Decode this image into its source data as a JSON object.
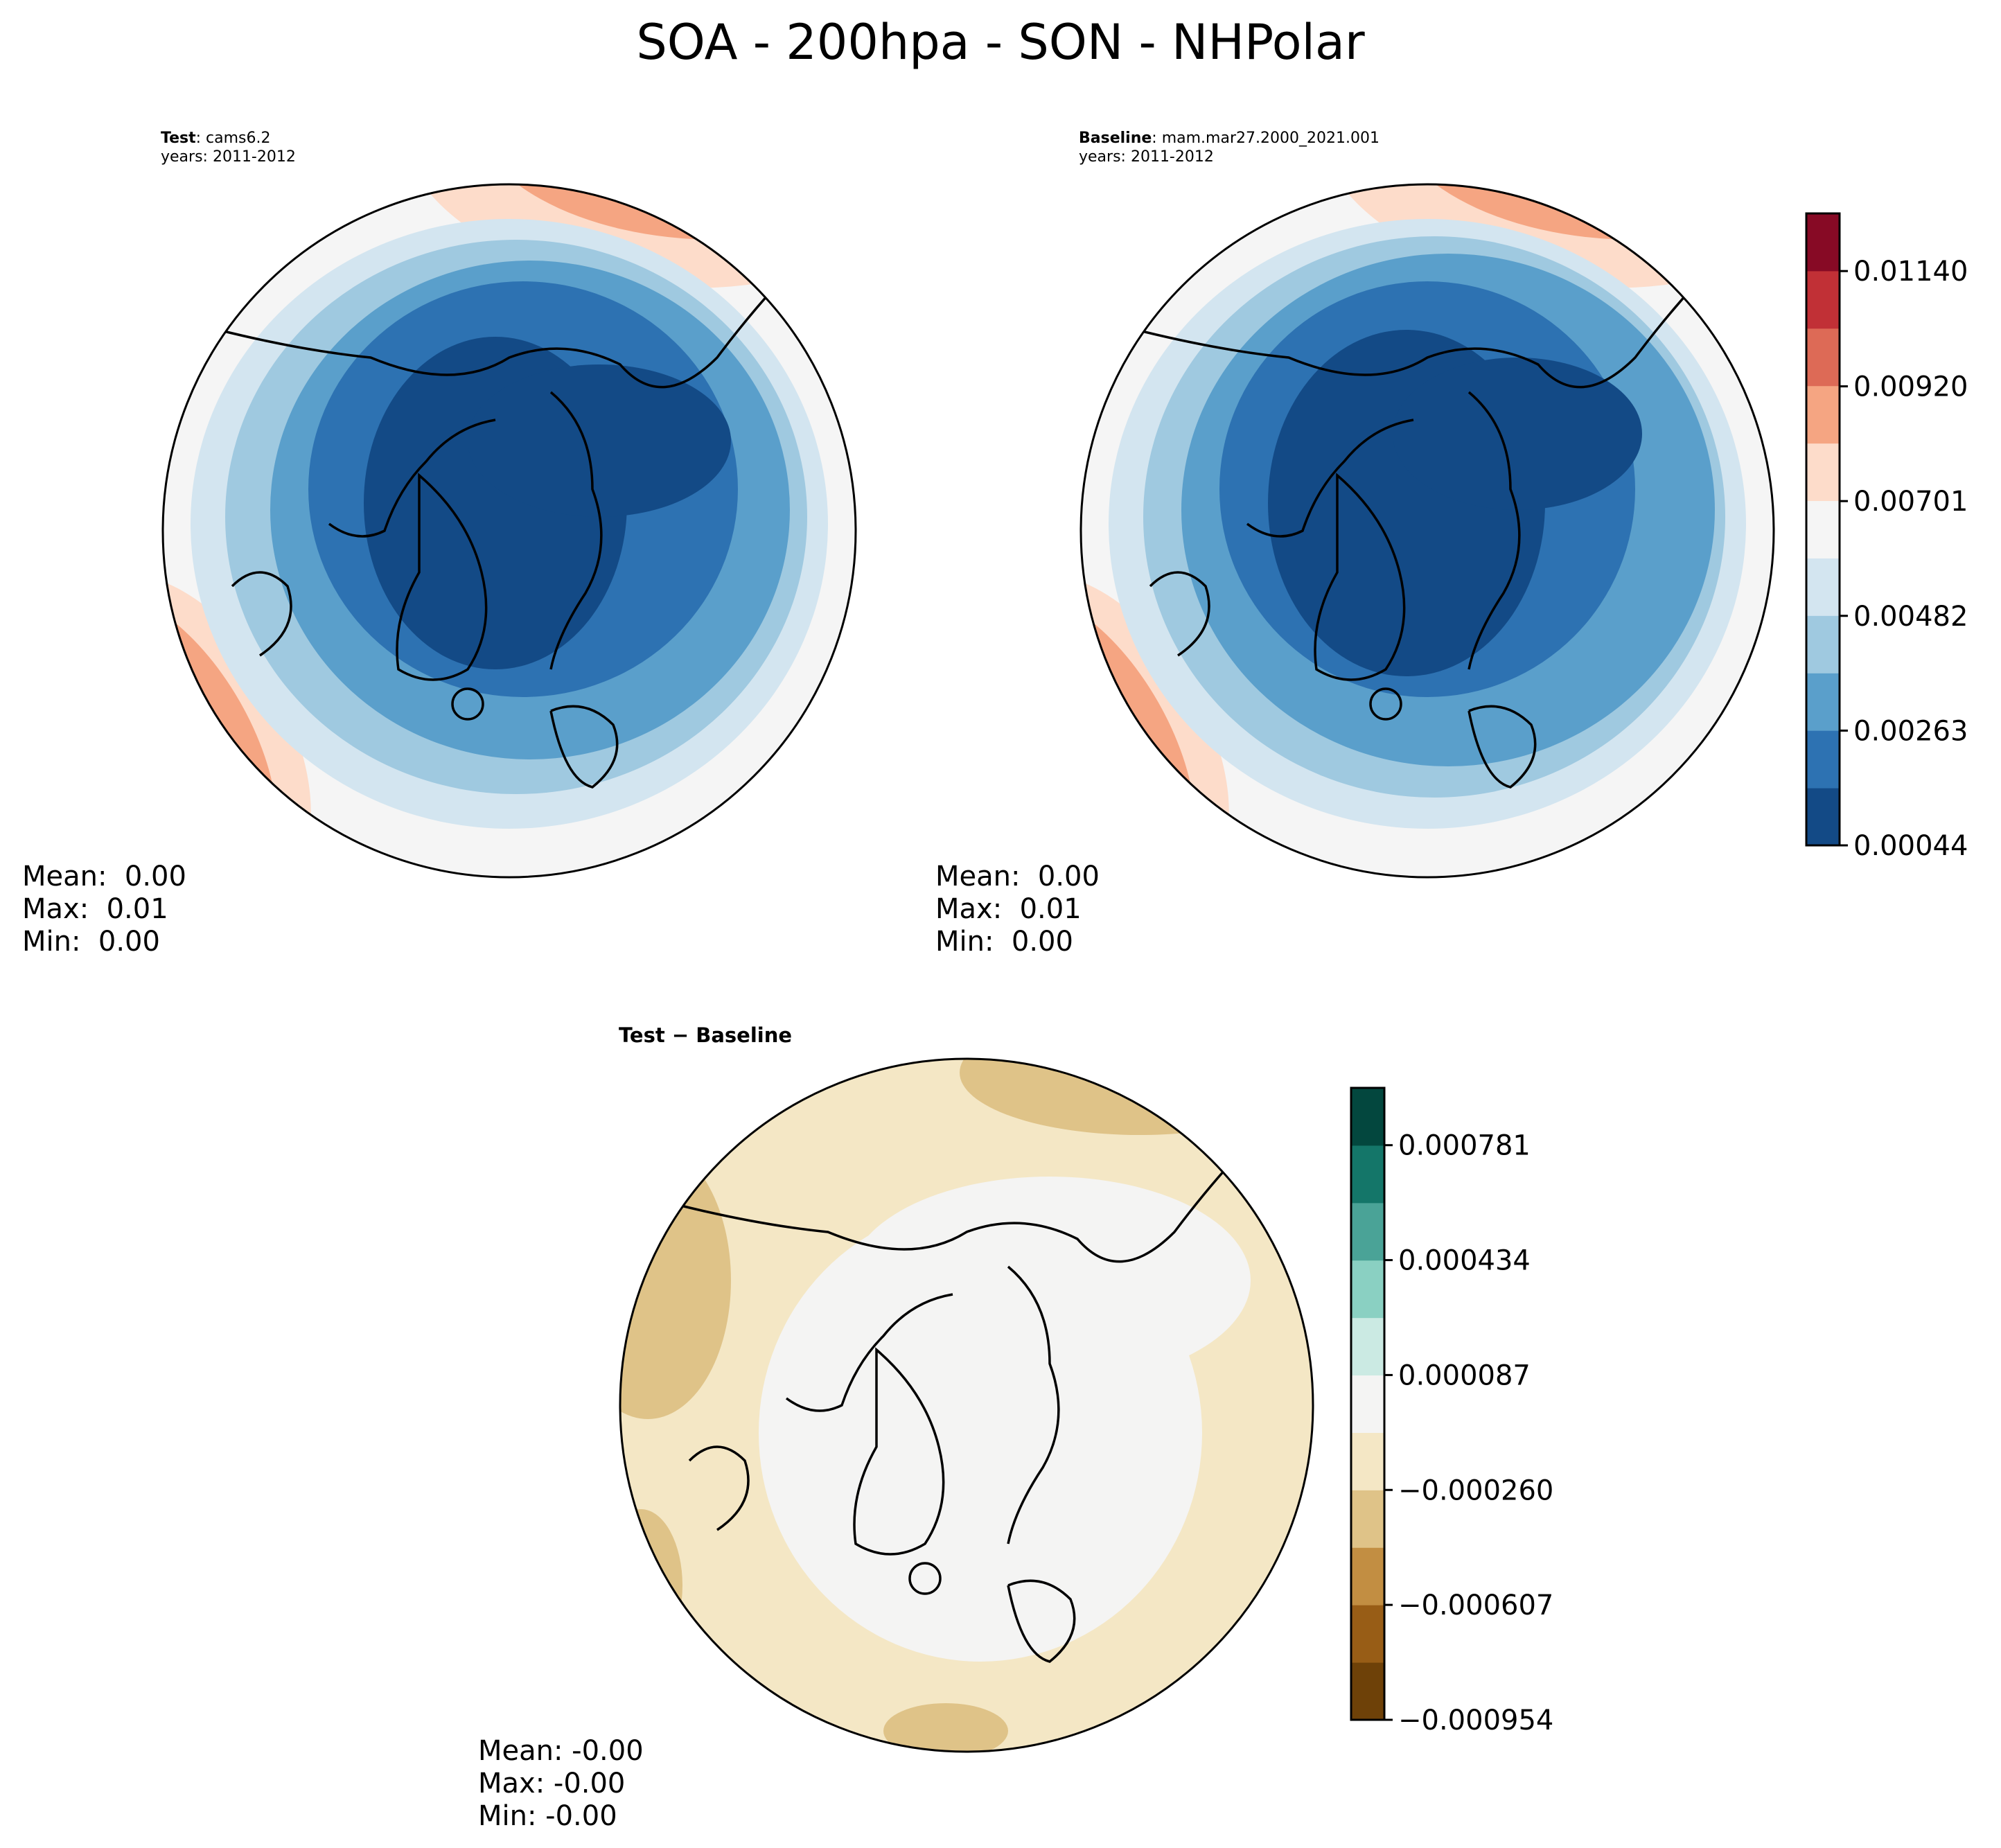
{
  "title": "SOA - 200hpa - SON - NHPolar",
  "panels": {
    "test": {
      "label_bold": "Test",
      "label_rest": ": cams6.2",
      "years": "years: 2011-2012",
      "stats": {
        "mean": "Mean:  0.00",
        "max": "Max:  0.01",
        "min": "Min:  0.00"
      }
    },
    "baseline": {
      "label_bold": "Baseline",
      "label_rest": ": mam.mar27.2000_2021.001",
      "years": "years: 2011-2012",
      "stats": {
        "mean": "Mean:  0.00",
        "max": "Max:  0.01",
        "min": "Min:  0.00"
      }
    },
    "diff": {
      "title": "Test − Baseline",
      "stats": {
        "mean": "Mean: -0.00",
        "max": "Max: -0.00",
        "min": "Min: -0.00"
      }
    }
  },
  "chart_data": [
    {
      "type": "heatmap",
      "name": "Test: cams6.2",
      "projection": "north-polar-stereographic",
      "colormap": "RdBu_r",
      "colorbar_ticks": [
        "0.00044",
        "0.00263",
        "0.00482",
        "0.00701",
        "0.00920",
        "0.01140"
      ],
      "colorbar_range": [
        0.00044,
        0.0125
      ],
      "colorbar_colors": [
        "#134a86",
        "#2d72b2",
        "#5a9fcb",
        "#9fc9e0",
        "#d3e5f0",
        "#f5f5f5",
        "#fddcca",
        "#f5a582",
        "#dd6a56",
        "#c13036",
        "#870a25"
      ],
      "stats": {
        "mean": 0.0,
        "max": 0.01,
        "min": 0.0
      }
    },
    {
      "type": "heatmap",
      "name": "Baseline: mam.mar27.2000_2021.001",
      "projection": "north-polar-stereographic",
      "colormap": "RdBu_r",
      "stats": {
        "mean": 0.0,
        "max": 0.01,
        "min": 0.0
      }
    },
    {
      "type": "heatmap",
      "name": "Test − Baseline",
      "projection": "north-polar-stereographic",
      "colormap": "BrBG",
      "colorbar_ticks": [
        "−0.000954",
        "−0.000607",
        "−0.000260",
        "0.000087",
        "0.000434",
        "0.000781"
      ],
      "colorbar_range": [
        -0.000954,
        0.000954
      ],
      "colorbar_colors": [
        "#6e4108",
        "#985d16",
        "#c28e42",
        "#dfc388",
        "#f4e7c5",
        "#f4f4f3",
        "#cbeae3",
        "#8ad0c2",
        "#4aa397",
        "#147669",
        "#03473e"
      ],
      "stats": {
        "mean": -0.0,
        "max": -0.0,
        "min": -0.0
      }
    }
  ]
}
